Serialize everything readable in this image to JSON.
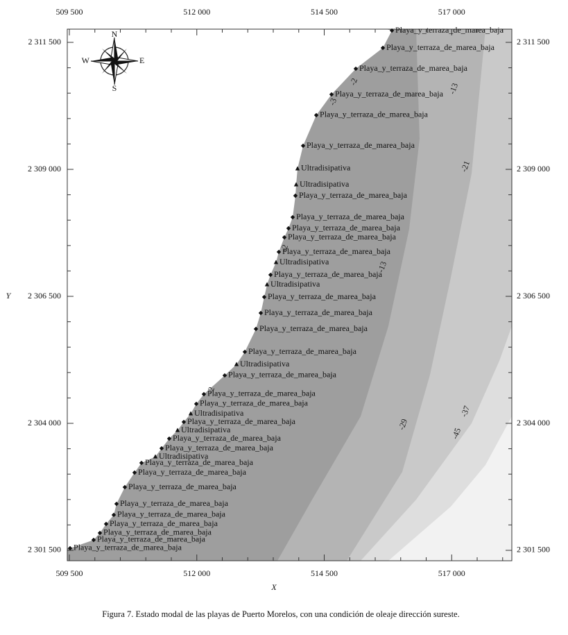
{
  "map": {
    "xlabel": "X",
    "ylabel": "Y",
    "xlim": [
      509459,
      518180
    ],
    "ylim": [
      2301295,
      2311760
    ],
    "xticks": [
      {
        "value": 509500,
        "label": "509 500"
      },
      {
        "value": 512000,
        "label": "512 000"
      },
      {
        "value": 514500,
        "label": "514 500"
      },
      {
        "value": 517000,
        "label": "517 000"
      }
    ],
    "yticks": [
      {
        "value": 2301500,
        "label": "2 301 500"
      },
      {
        "value": 2304000,
        "label": "2 304 000"
      },
      {
        "value": 2306500,
        "label": "2 306 500"
      },
      {
        "value": 2309000,
        "label": "2 309 000"
      },
      {
        "value": 2311500,
        "label": "2 311 500"
      }
    ],
    "xminorticks": [
      510000,
      510500,
      511000,
      511500,
      512500,
      513000,
      513500,
      514000,
      515000,
      515500,
      516000,
      516500,
      517500,
      518000
    ],
    "yminorticks": [
      2302000,
      2302500,
      2303000,
      2303500,
      2304500,
      2305000,
      2305500,
      2306000,
      2307000,
      2307500,
      2308000,
      2308500,
      2309500,
      2310000,
      2310500,
      2311000
    ],
    "compass": {
      "n": "N",
      "s": "S",
      "e": "E",
      "w": "W"
    },
    "points": [
      {
        "x": 515827,
        "y": 2311732,
        "label": "Playa_y_terraza_de_marea_baja",
        "marker": "diamond"
      },
      {
        "x": 515650,
        "y": 2311391,
        "label": "Playa_y_terraza_de_marea_baja",
        "marker": "diamond"
      },
      {
        "x": 515119,
        "y": 2310981,
        "label": "Playa_y_terraza_de_marea_baja",
        "marker": "diamond"
      },
      {
        "x": 514643,
        "y": 2310475,
        "label": "Playa_y_terraza_de_marea_baja",
        "marker": "diamond"
      },
      {
        "x": 514344,
        "y": 2310066,
        "label": "Playa_y_terraza_de_marea_baja",
        "marker": "diamond"
      },
      {
        "x": 514085,
        "y": 2309464,
        "label": "Playa_y_terraza_de_marea_baja",
        "marker": "diamond"
      },
      {
        "x": 513976,
        "y": 2309014,
        "label": "Ultradisipativa",
        "marker": "triangle"
      },
      {
        "x": 513949,
        "y": 2308699,
        "label": "Ultradisipativa",
        "marker": "triangle"
      },
      {
        "x": 513935,
        "y": 2308481,
        "label": "Playa_y_terraza_de_marea_baja",
        "marker": "diamond"
      },
      {
        "x": 513881,
        "y": 2308057,
        "label": "Playa_y_terraza_de_marea_baja",
        "marker": "diamond"
      },
      {
        "x": 513799,
        "y": 2307839,
        "label": "Playa_y_terraza_de_marea_baja",
        "marker": "diamond"
      },
      {
        "x": 513718,
        "y": 2307661,
        "label": "Playa_y_terraza_de_marea_baja",
        "marker": "diamond"
      },
      {
        "x": 513609,
        "y": 2307374,
        "label": "Playa_y_terraza_de_marea_baja",
        "marker": "diamond"
      },
      {
        "x": 513554,
        "y": 2307169,
        "label": "Ultradisipativa",
        "marker": "triangle"
      },
      {
        "x": 513446,
        "y": 2306923,
        "label": "Playa_y_terraza_de_marea_baja",
        "marker": "diamond"
      },
      {
        "x": 513378,
        "y": 2306732,
        "label": "Ultradisipativa",
        "marker": "triangle"
      },
      {
        "x": 513323,
        "y": 2306486,
        "label": "Playa_y_terraza_de_marea_baja",
        "marker": "diamond"
      },
      {
        "x": 513255,
        "y": 2306172,
        "label": "Playa_y_terraza_de_marea_baja",
        "marker": "diamond"
      },
      {
        "x": 513160,
        "y": 2305858,
        "label": "Playa_y_terraza_de_marea_baja",
        "marker": "diamond"
      },
      {
        "x": 512942,
        "y": 2305407,
        "label": "Playa_y_terraza_de_marea_baja",
        "marker": "diamond"
      },
      {
        "x": 512779,
        "y": 2305161,
        "label": "Ultradisipativa",
        "marker": "triangle"
      },
      {
        "x": 512548,
        "y": 2304943,
        "label": "Playa_y_terraza_de_marea_baja",
        "marker": "diamond"
      },
      {
        "x": 512139,
        "y": 2304574,
        "label": "Playa_y_terraza_de_marea_baja",
        "marker": "diamond"
      },
      {
        "x": 511990,
        "y": 2304383,
        "label": "Playa_y_terraza_de_marea_baja",
        "marker": "diamond"
      },
      {
        "x": 511881,
        "y": 2304191,
        "label": "Ultradisipativa",
        "marker": "triangle"
      },
      {
        "x": 511745,
        "y": 2304027,
        "label": "Playa_y_terraza_de_marea_baja",
        "marker": "diamond"
      },
      {
        "x": 511622,
        "y": 2303863,
        "label": "Ultradisipativa",
        "marker": "triangle"
      },
      {
        "x": 511459,
        "y": 2303699,
        "label": "Playa_y_terraza_de_marea_baja",
        "marker": "diamond"
      },
      {
        "x": 511310,
        "y": 2303508,
        "label": "Playa_y_terraza_de_marea_baja",
        "marker": "diamond"
      },
      {
        "x": 511187,
        "y": 2303344,
        "label": "Ultradisipativa",
        "marker": "triangle"
      },
      {
        "x": 510915,
        "y": 2303221,
        "label": "Playa_y_terraza_de_marea_baja",
        "marker": "diamond"
      },
      {
        "x": 510779,
        "y": 2303030,
        "label": "Playa_y_terraza_de_marea_baja",
        "marker": "diamond"
      },
      {
        "x": 510588,
        "y": 2302743,
        "label": "Playa_y_terraza_de_marea_baja",
        "marker": "diamond"
      },
      {
        "x": 510425,
        "y": 2302415,
        "label": "Playa_y_terraza_de_marea_baja",
        "marker": "diamond"
      },
      {
        "x": 510371,
        "y": 2302197,
        "label": "Playa_y_terraza_de_marea_baja",
        "marker": "diamond"
      },
      {
        "x": 510221,
        "y": 2302019,
        "label": "Playa_y_terraza_de_marea_baja",
        "marker": "diamond"
      },
      {
        "x": 510099,
        "y": 2301842,
        "label": "Playa_y_terraza_de_marea_baja",
        "marker": "diamond"
      },
      {
        "x": 509976,
        "y": 2301705,
        "label": "Playa_y_terraza_de_marea_baja",
        "marker": "diamond"
      },
      {
        "x": 509514,
        "y": 2301541,
        "label": "Playa_y_terraza_de_marea_baja",
        "marker": "diamond"
      }
    ],
    "contour_labels": [
      {
        "x": 515092,
        "y": 2310721,
        "label": "-2"
      },
      {
        "x": 514684,
        "y": 2310325,
        "label": "-3"
      },
      {
        "x": 517051,
        "y": 2310585,
        "label": "-13"
      },
      {
        "x": 517282,
        "y": 2309055,
        "label": "-21"
      },
      {
        "x": 513731,
        "y": 2307443,
        "label": "-2"
      },
      {
        "x": 515650,
        "y": 2307074,
        "label": "-13"
      },
      {
        "x": 512289,
        "y": 2304642,
        "label": "-2"
      },
      {
        "x": 516058,
        "y": 2303973,
        "label": "-29"
      },
      {
        "x": 517282,
        "y": 2304232,
        "label": "-37"
      },
      {
        "x": 517105,
        "y": 2303795,
        "label": "-45"
      }
    ]
  },
  "caption": "Figura 7. Estado modal de las playas de Puerto Morelos, con una condición de oleaje dirección sureste."
}
